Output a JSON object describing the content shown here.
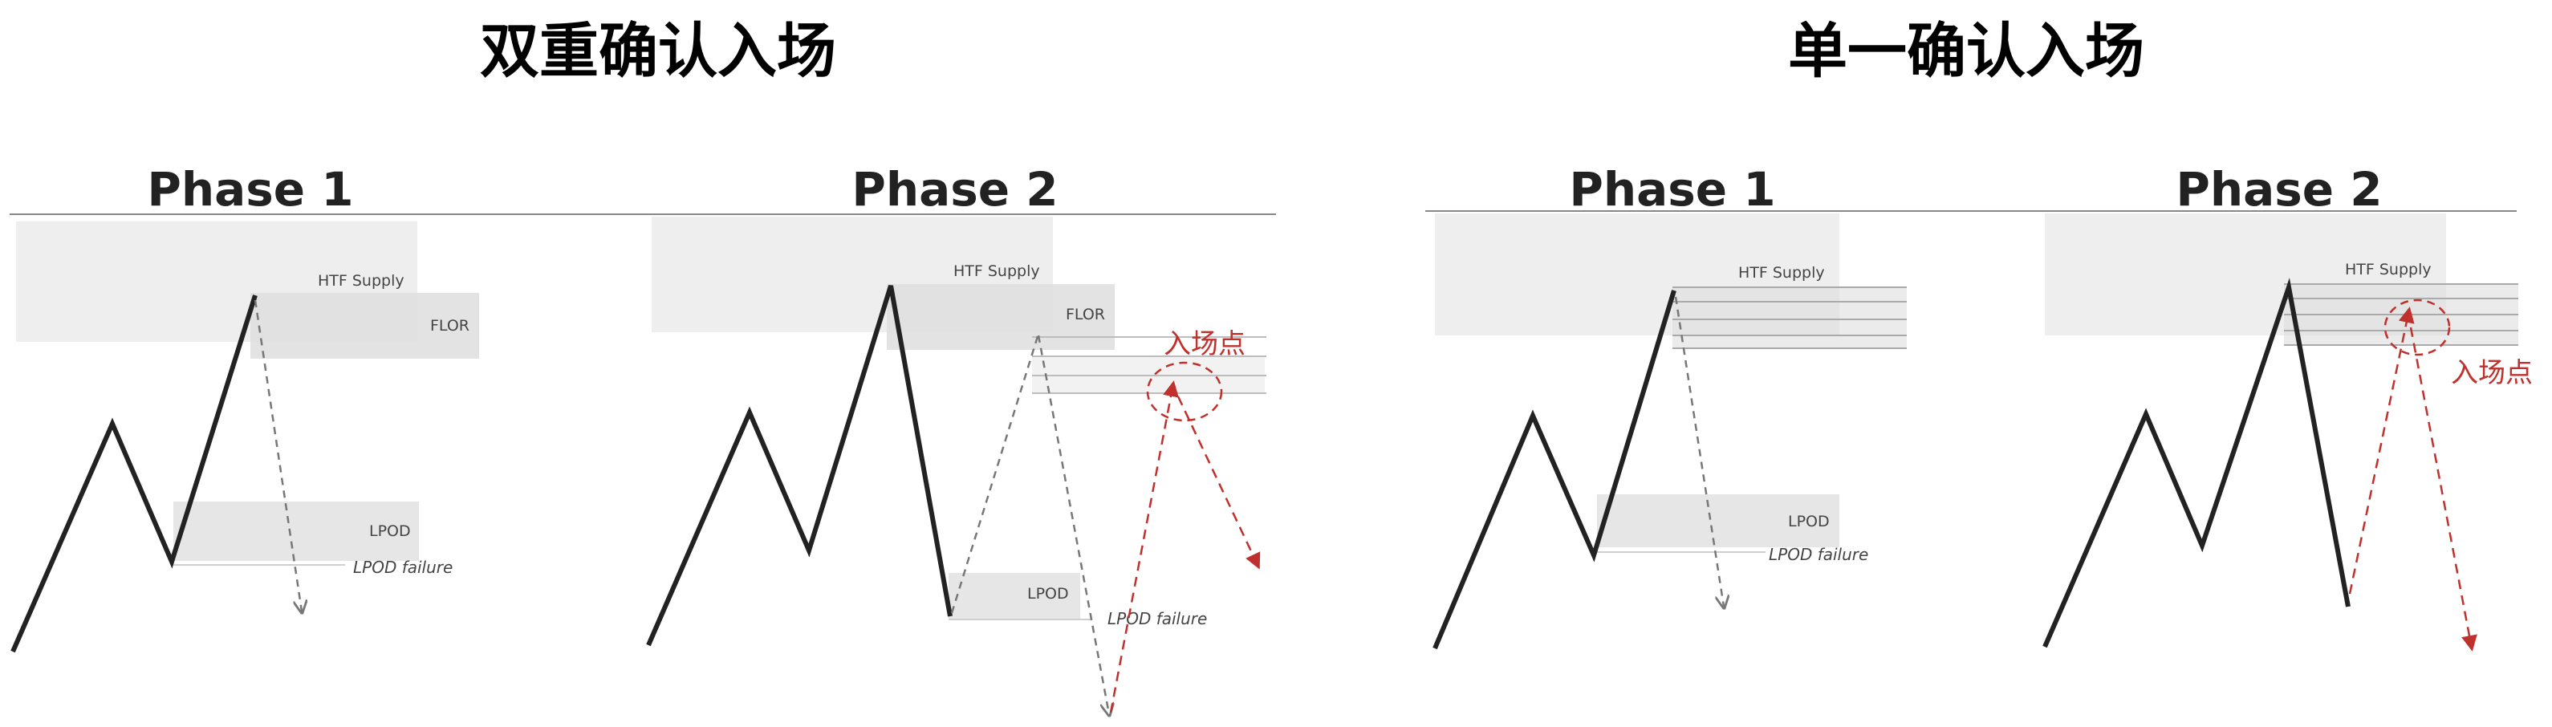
{
  "titles": {
    "left": "双重确认入场",
    "right": "单一确认入场"
  },
  "panels": {
    "left_phase1": {
      "phase": "Phase 1",
      "htf_supply": "HTF Supply",
      "flor": "FLOR",
      "lpod": "LPOD",
      "lpod_failure": "LPOD failure"
    },
    "left_phase2": {
      "phase": "Phase 2",
      "htf_supply": "HTF Supply",
      "flor": "FLOR",
      "lpod": "LPOD",
      "lpod_failure": "LPOD failure",
      "entry_point": "入场点"
    },
    "right_phase1": {
      "phase": "Phase 1",
      "htf_supply": "HTF Supply",
      "lpod": "LPOD",
      "lpod_failure": "LPOD failure"
    },
    "right_phase2": {
      "phase": "Phase 2",
      "htf_supply": "HTF Supply",
      "entry_point": "入场点"
    }
  },
  "colors": {
    "price_line": "#222222",
    "zone_light": "#eeeeee",
    "zone_mid": "#dedede",
    "zone_lpod": "#e6e6e6",
    "divider": "#888888",
    "dashed_gray": "#777777",
    "entry_red": "#c0302c"
  }
}
